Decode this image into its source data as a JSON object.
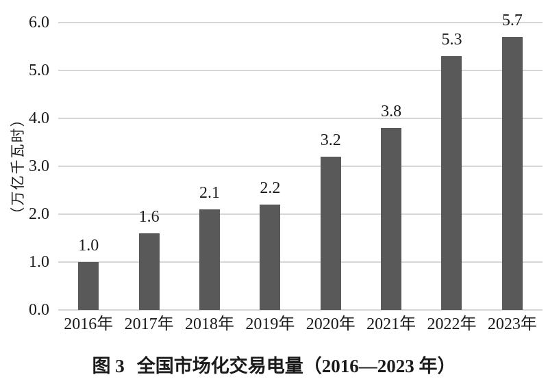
{
  "chart_data": {
    "type": "bar",
    "title": "图 3 全国市场化交易电量（2016—2023 年）",
    "title_label": "图 3",
    "title_text": "全国市场化交易电量（2016—2023 年）",
    "ylabel": "（万亿千瓦时）",
    "xlabel": "",
    "categories": [
      "2016年",
      "2017年",
      "2018年",
      "2019年",
      "2020年",
      "2021年",
      "2022年",
      "2023年"
    ],
    "values": [
      1.0,
      1.6,
      2.1,
      2.2,
      3.2,
      3.8,
      5.3,
      5.7
    ],
    "value_labels": [
      "1.0",
      "1.6",
      "2.1",
      "2.2",
      "3.2",
      "3.8",
      "5.3",
      "5.7"
    ],
    "yticks": [
      0,
      1,
      2,
      3,
      4,
      5,
      6
    ],
    "ytick_labels": [
      "0.0",
      "1.0",
      "2.0",
      "3.0",
      "4.0",
      "5.0",
      "6.0"
    ],
    "ylim": [
      0,
      6
    ],
    "grid": true,
    "legend_position": "none",
    "bar_color": "#595959",
    "grid_color": "#d6d6d6",
    "text_color": "#1a1a1a",
    "background_color": "#ffffff"
  }
}
